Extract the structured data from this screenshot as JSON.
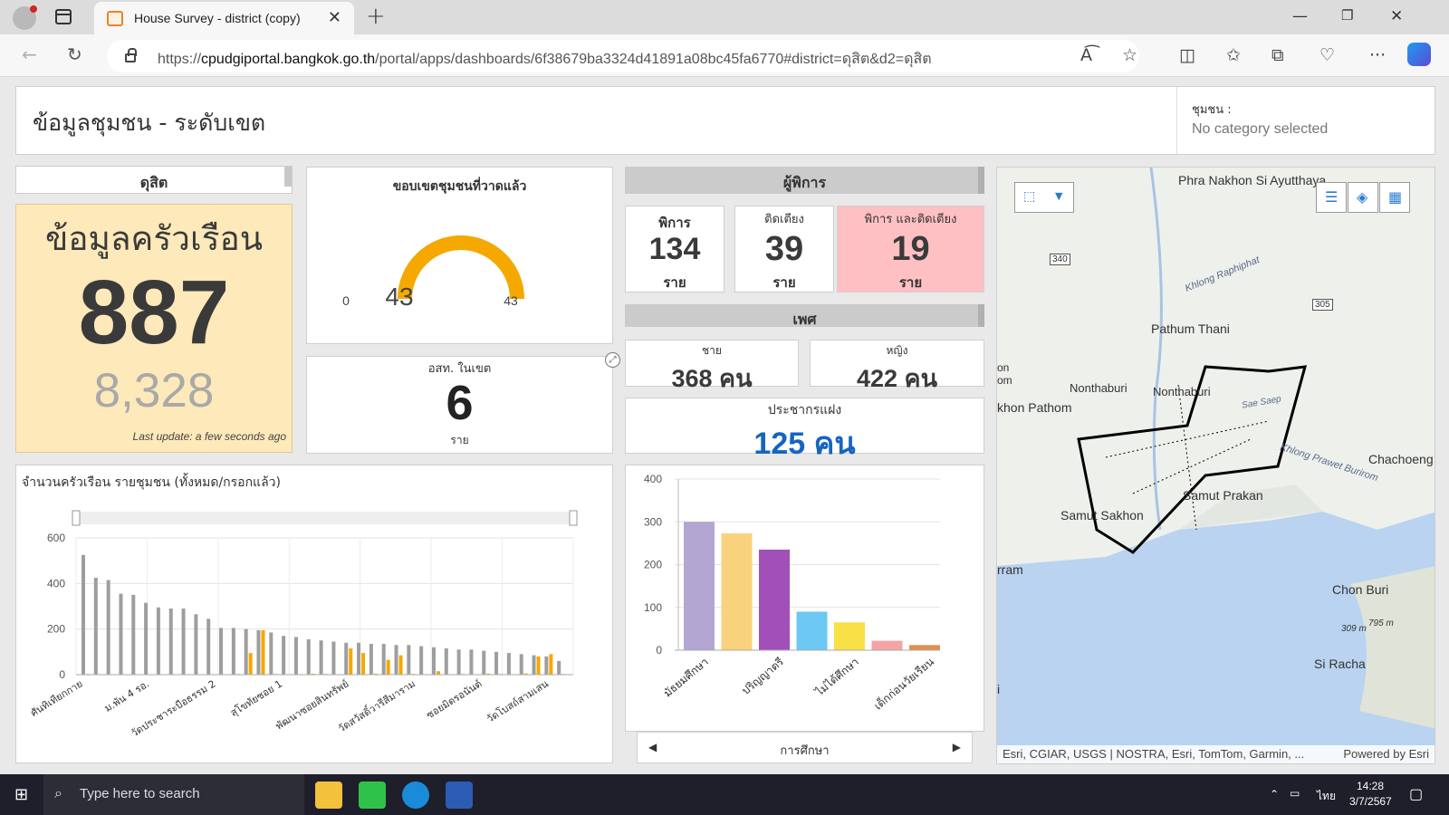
{
  "browser": {
    "tab_title": "House Survey - district (copy)",
    "url_prefix": "https://",
    "url_host": "cpudgiportal.bangkok.go.th",
    "url_path": "/portal/apps/dashboards/6f38679ba3324d41891a08bc45fa6770#district=ดุสิต&d2=ดุสิต"
  },
  "header": {
    "title": "ข้อมูลชุมชน - ระดับเขต",
    "selector_label": "ชุมชน :",
    "selector_value": "No category selected"
  },
  "district": {
    "name": "ดุสิต"
  },
  "household": {
    "title": "ข้อมูลครัวเรือน",
    "value": "887",
    "sub_value": "8,328",
    "last_update": "Last update: a few seconds ago"
  },
  "gauge": {
    "title": "ขอบเขตชุมชนที่วาดแล้ว",
    "value": 43,
    "min": 0,
    "max": 43,
    "value_label": "43",
    "min_label": "0",
    "max_label": "43",
    "color": "#f5a800"
  },
  "ost": {
    "title": "อสท. ในเขต",
    "value": "6",
    "unit": "ราย"
  },
  "disabled": {
    "section": "ผู้พิการ",
    "cards": [
      {
        "label": "พิการ",
        "value": "134",
        "unit": "ราย"
      },
      {
        "label": "ติดเตียง",
        "value": "39",
        "unit": "ราย"
      },
      {
        "label": "พิการ และติดเตียง",
        "value": "19",
        "unit": "ราย",
        "bg": "#ffc0c4"
      }
    ]
  },
  "sex": {
    "section": "เพศ",
    "male_label": "ชาย",
    "male_value": "368 คน",
    "female_label": "หญิง",
    "female_value": "422 คน"
  },
  "hidden_pop": {
    "label": "ประชากรแฝง",
    "value": "125 คน",
    "color": "#1565c0"
  },
  "household_chart": {
    "title": "จำนวนครัวเรือน รายชุมชน (ทั้งหมด/กรอกแล้ว)"
  },
  "education_nav": {
    "label": "การศึกษา"
  },
  "chart_data": [
    {
      "type": "bar",
      "title": "จำนวนครัวเรือน รายชุมชน (ทั้งหมด/กรอกแล้ว)",
      "ylim": [
        0,
        600
      ],
      "yticks": [
        "0",
        "200",
        "400",
        "600"
      ],
      "tick_labels": [
        "ศันทิเทียกกาย",
        "ม.พัน 4 รอ.",
        "วัดประชาระบือธรรม 2",
        "สุโขทัยซอย 1",
        "พัฒนาซอยสินทรัพย์",
        "วัดสวัสดิ์วารีสีมาราม",
        "ซอยมิตรอนันต์",
        "วัดโบสถ์สามเสน"
      ],
      "series": [
        {
          "values": [
            525,
            425,
            415,
            355,
            350,
            315,
            295,
            290,
            290,
            265,
            245,
            205,
            205,
            200,
            195,
            185,
            170,
            165,
            155,
            150,
            145,
            140,
            140,
            135,
            135,
            130,
            130,
            125,
            120,
            115,
            110,
            110,
            105,
            100,
            95,
            90,
            85,
            80,
            60
          ],
          "color": "#9e9e9e"
        },
        {
          "values": [
            3,
            2,
            2,
            2,
            2,
            1,
            1,
            1,
            1,
            2,
            2,
            2,
            3,
            95,
            195,
            3,
            2,
            2,
            4,
            3,
            2,
            115,
            95,
            4,
            65,
            85,
            3,
            2,
            15,
            2,
            3,
            2,
            4,
            3,
            2,
            5,
            80,
            90,
            3
          ],
          "color": "#f5a800"
        }
      ]
    },
    {
      "type": "bar",
      "categories": [
        "มัธยมศึกษา",
        "ปริญญาตรี",
        "ไม่ได้ศึกษา",
        "เด็กก่อนวัยเรียน"
      ],
      "xlabel": "การศึกษา",
      "ylim": [
        0,
        400
      ],
      "yticks": [
        "0",
        "100",
        "200",
        "300",
        "400"
      ],
      "bars": [
        {
          "value": 300,
          "color": "#b3a6d3"
        },
        {
          "value": 273,
          "color": "#f9d27d"
        },
        {
          "value": 235,
          "color": "#a14fb9"
        },
        {
          "value": 90,
          "color": "#6cc8f3"
        },
        {
          "value": 65,
          "color": "#f8e046"
        },
        {
          "value": 22,
          "color": "#f6a3a6"
        },
        {
          "value": 12,
          "color": "#e0914c"
        }
      ],
      "labelled_bars": [
        0,
        2,
        4,
        6
      ]
    }
  ],
  "map": {
    "places": [
      "Phra Nakhon Si Ayutthaya",
      "Pathum Thani",
      "Nonthaburi",
      "Nonthaburi",
      "khon Pathom",
      "Samut Prakan",
      "Samut Sakhon",
      "Chachoeng",
      "Chon Buri",
      "Si Racha",
      "rram",
      "on",
      "om",
      "i"
    ],
    "water_labels": [
      "Khlong Raphiphat",
      "Khlong Prawet Burirom",
      "Sae Saep"
    ],
    "roads": [
      "340",
      "305"
    ],
    "elevations": [
      "309 m",
      "795 m"
    ],
    "attribution": "Esri, CGIAR, USGS | NOSTRA, Esri, TomTom, Garmin, ...",
    "powered": "Powered by Esri"
  },
  "taskbar": {
    "search_placeholder": "Type here to search",
    "time": "14:28",
    "date": "3/7/2567",
    "lang": "ไทย"
  }
}
